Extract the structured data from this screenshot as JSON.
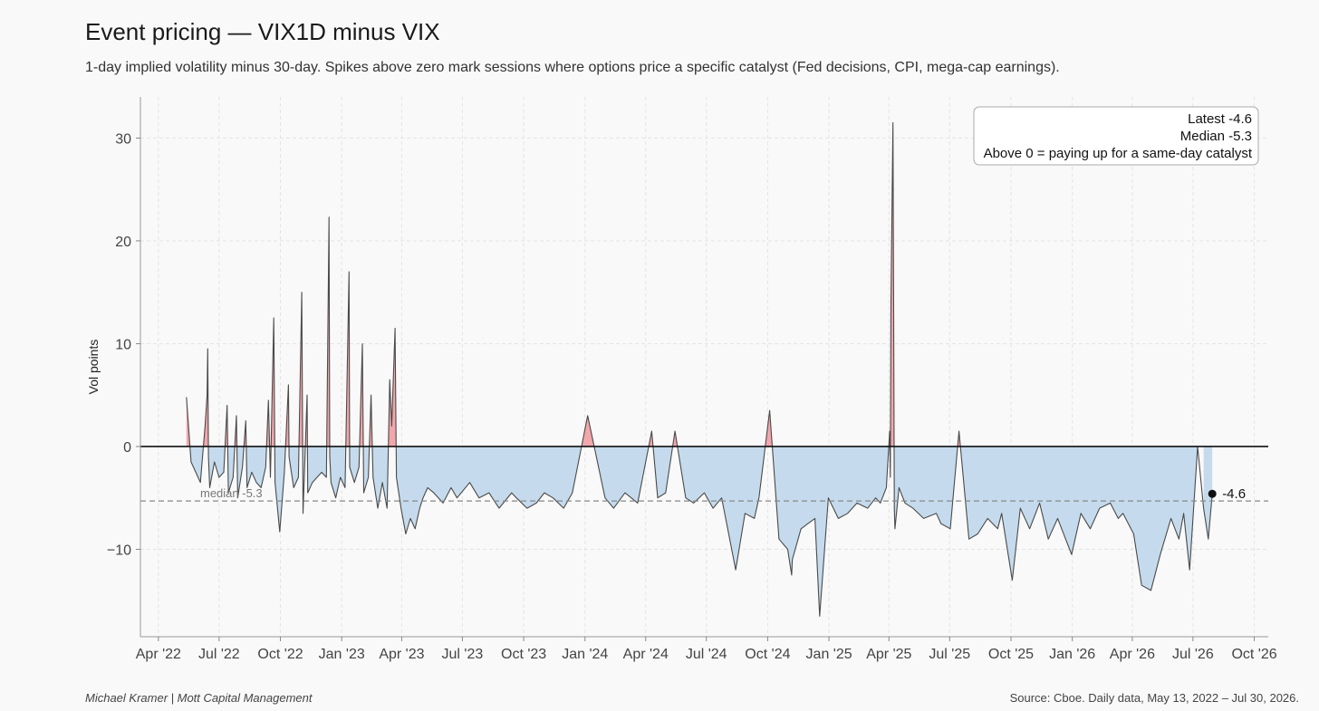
{
  "header": {
    "title": "Event pricing — VIX1D minus VIX",
    "subtitle": "1-day implied volatility minus 30-day. Spikes above zero mark sessions where options price a specific catalyst (Fed decisions, CPI, mega-cap earnings)."
  },
  "footer": {
    "author": "Michael Kramer  |  Mott Capital Management",
    "source": "Source: Cboe. Daily data, May 13, 2022 – Jul 30, 2026."
  },
  "chart_data": {
    "type": "area",
    "title": "Event pricing — VIX1D minus VIX",
    "xlabel": "",
    "ylabel": "Vol points",
    "x_range": [
      "2022-03-05",
      "2026-10-22"
    ],
    "ylim": [
      -18.5,
      34
    ],
    "x_ticks": [
      {
        "date": "2022-04-01",
        "label": "Apr '22"
      },
      {
        "date": "2022-07-01",
        "label": "Jul '22"
      },
      {
        "date": "2022-10-01",
        "label": "Oct '22"
      },
      {
        "date": "2023-01-01",
        "label": "Jan '23"
      },
      {
        "date": "2023-04-01",
        "label": "Apr '23"
      },
      {
        "date": "2023-07-01",
        "label": "Jul '23"
      },
      {
        "date": "2023-10-01",
        "label": "Oct '23"
      },
      {
        "date": "2024-01-01",
        "label": "Jan '24"
      },
      {
        "date": "2024-04-01",
        "label": "Apr '24"
      },
      {
        "date": "2024-07-01",
        "label": "Jul '24"
      },
      {
        "date": "2024-10-01",
        "label": "Oct '24"
      },
      {
        "date": "2025-01-01",
        "label": "Jan '25"
      },
      {
        "date": "2025-04-01",
        "label": "Apr '25"
      },
      {
        "date": "2025-07-01",
        "label": "Jul '25"
      },
      {
        "date": "2025-10-01",
        "label": "Oct '25"
      },
      {
        "date": "2026-01-01",
        "label": "Jan '26"
      },
      {
        "date": "2026-04-01",
        "label": "Apr '26"
      },
      {
        "date": "2026-07-01",
        "label": "Jul '26"
      },
      {
        "date": "2026-10-01",
        "label": "Oct '26"
      }
    ],
    "y_ticks": [
      {
        "value": -10,
        "label": "−10"
      },
      {
        "value": 0,
        "label": "0"
      },
      {
        "value": 10,
        "label": "10"
      },
      {
        "value": 20,
        "label": "20"
      },
      {
        "value": 30,
        "label": "30"
      }
    ],
    "grid": true,
    "zero_line": 0,
    "median": {
      "value": -5.3,
      "label": "median -5.3"
    },
    "latest": {
      "date": "2026-07-30",
      "value": -4.6,
      "label": "-4.6"
    },
    "annotation_box": {
      "position": "top-right",
      "lines": [
        "Latest -4.6",
        "Median -5.3",
        "Above 0 = paying up for a same-day catalyst"
      ]
    },
    "colors": {
      "line": "#4a4a4a",
      "positive_fill": "#f2a7ac",
      "negative_fill": "#c5dbed",
      "median_line": "#888888",
      "zero_line": "#111111"
    },
    "series": [
      {
        "x": [
          "2022-05-13",
          "2022-05-20",
          "2022-05-27",
          "2022-06-03",
          "2022-06-10",
          "2022-06-13",
          "2022-06-14",
          "2022-06-15",
          "2022-06-17",
          "2022-06-24",
          "2022-07-01",
          "2022-07-08",
          "2022-07-13",
          "2022-07-15",
          "2022-07-22",
          "2022-07-27",
          "2022-07-29",
          "2022-08-05",
          "2022-08-10",
          "2022-08-12",
          "2022-08-19",
          "2022-08-26",
          "2022-09-02",
          "2022-09-09",
          "2022-09-13",
          "2022-09-16",
          "2022-09-21",
          "2022-09-23",
          "2022-09-30",
          "2022-10-07",
          "2022-10-13",
          "2022-10-14",
          "2022-10-21",
          "2022-10-28",
          "2022-11-02",
          "2022-11-04",
          "2022-11-10",
          "2022-11-11",
          "2022-11-18",
          "2022-11-25",
          "2022-12-02",
          "2022-12-09",
          "2022-12-13",
          "2022-12-14",
          "2022-12-16",
          "2022-12-23",
          "2022-12-30",
          "2023-01-06",
          "2023-01-12",
          "2023-01-13",
          "2023-01-20",
          "2023-01-27",
          "2023-02-01",
          "2023-02-03",
          "2023-02-10",
          "2023-02-14",
          "2023-02-17",
          "2023-02-24",
          "2023-03-03",
          "2023-03-10",
          "2023-03-14",
          "2023-03-17",
          "2023-03-22",
          "2023-03-24",
          "2023-03-31",
          "2023-04-07",
          "2023-04-14",
          "2023-04-21",
          "2023-04-28",
          "2023-05-03",
          "2023-05-10",
          "2023-05-19",
          "2023-06-02",
          "2023-06-14",
          "2023-06-23",
          "2023-07-12",
          "2023-07-26",
          "2023-08-10",
          "2023-08-25",
          "2023-09-13",
          "2023-09-20",
          "2023-10-06",
          "2023-10-20",
          "2023-11-01",
          "2023-11-14",
          "2023-11-30",
          "2023-12-13",
          "2024-01-05",
          "2024-01-31",
          "2024-02-13",
          "2024-03-01",
          "2024-03-20",
          "2024-04-10",
          "2024-04-19",
          "2024-05-01",
          "2024-05-15",
          "2024-05-31",
          "2024-06-12",
          "2024-06-28",
          "2024-07-11",
          "2024-07-24",
          "2024-08-05",
          "2024-08-14",
          "2024-08-28",
          "2024-09-11",
          "2024-09-18",
          "2024-10-04",
          "2024-10-18",
          "2024-10-31",
          "2024-11-06",
          "2024-11-07",
          "2024-11-20",
          "2024-12-11",
          "2024-12-18",
          "2024-12-31",
          "2025-01-15",
          "2025-01-29",
          "2025-02-12",
          "2025-02-28",
          "2025-03-12",
          "2025-03-19",
          "2025-03-28",
          "2025-04-02",
          "2025-04-03",
          "2025-04-04",
          "2025-04-07",
          "2025-04-08",
          "2025-04-09",
          "2025-04-10",
          "2025-04-16",
          "2025-04-25",
          "2025-05-07",
          "2025-05-23",
          "2025-06-11",
          "2025-06-18",
          "2025-07-02",
          "2025-07-15",
          "2025-07-30",
          "2025-08-12",
          "2025-08-27",
          "2025-09-11",
          "2025-09-17",
          "2025-10-03",
          "2025-10-15",
          "2025-10-29",
          "2025-11-13",
          "2025-11-26",
          "2025-12-10",
          "2025-12-31",
          "2026-01-14",
          "2026-01-28",
          "2026-02-11",
          "2026-02-27",
          "2026-03-11",
          "2026-03-18",
          "2026-04-03",
          "2026-04-15",
          "2026-04-29",
          "2026-05-13",
          "2026-05-29",
          "2026-06-10",
          "2026-06-17",
          "2026-06-26",
          "2026-07-08",
          "2026-07-17",
          "2026-07-24",
          "2026-07-30"
        ],
        "y": [
          4.8,
          -1.5,
          -2.5,
          -3.5,
          2,
          5,
          9.5,
          -1,
          -4,
          -1.5,
          -3,
          -2.5,
          4,
          -4.5,
          -3,
          3,
          -5,
          -2,
          2.5,
          -4,
          -2.5,
          -3.5,
          -4,
          -2,
          4.5,
          -3,
          12.5,
          -3.5,
          -8.3,
          -2.5,
          6,
          -1,
          -4,
          -3,
          15,
          -6.5,
          5,
          -4.5,
          -3.5,
          -3,
          -2.5,
          -3,
          22.3,
          -1,
          -3.5,
          -5,
          -3,
          -4,
          17,
          -2,
          -3.5,
          -2,
          10,
          -4.5,
          -3,
          5,
          -3,
          -6,
          -3.5,
          -6,
          6.5,
          2,
          11.5,
          -3,
          -6,
          -8.5,
          -7,
          -8,
          -6,
          -5,
          -4,
          -4.5,
          -5.5,
          -4,
          -5,
          -3.5,
          -5,
          -4.5,
          -6,
          -4.5,
          -5,
          -6,
          -5.5,
          -4.5,
          -5,
          -6,
          -4.5,
          3,
          -5,
          -6,
          -4.5,
          -5.5,
          1.5,
          -5,
          -4.5,
          1.5,
          -5,
          -5.5,
          -4.5,
          -6,
          -5,
          -9,
          -12,
          -6.5,
          -7,
          -5,
          3.5,
          -9,
          -10,
          -12.5,
          -11,
          -8,
          -7,
          -16.5,
          -5,
          -7,
          -6.5,
          -5.5,
          -6,
          -5,
          -5.5,
          -4,
          1.5,
          -3,
          14,
          31.5,
          13,
          -6,
          -8,
          -4,
          -5.5,
          -6,
          -7,
          -6.5,
          -7.5,
          -8,
          1.5,
          -9,
          -8.5,
          -7,
          -8,
          -6.5,
          -13,
          -6,
          -8,
          -5.5,
          -9,
          -7,
          -10.5,
          -6.5,
          -8,
          -6,
          -5.5,
          -7,
          -6.5,
          -8.5,
          -13.5,
          -14,
          -10.5,
          -7,
          -9,
          -6.5,
          -12,
          0,
          -6,
          -9,
          -4.6
        ]
      }
    ]
  }
}
